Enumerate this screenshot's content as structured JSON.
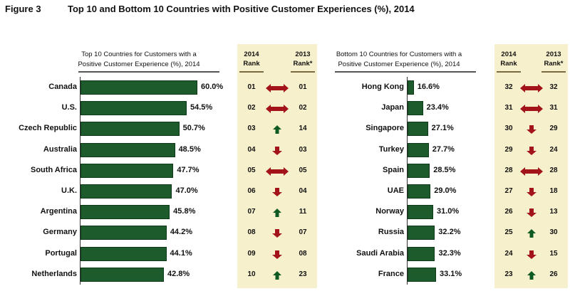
{
  "figure_label": "Figure 3",
  "title": "Top 10 and Bottom 10 Countries with Positive Customer Experiences (%), 2014",
  "colors": {
    "bar": "#1d5a2c",
    "up": "#0e5a22",
    "down": "#a3141a",
    "panel": "#f7f0cc"
  },
  "chart_data": [
    {
      "type": "bar",
      "orientation": "horizontal",
      "title_lines": [
        "Top 10 Countries for Customers with a",
        "Positive Customer Experience (%), 2014"
      ],
      "rank_headers": {
        "y2014": [
          "2014",
          "Rank"
        ],
        "y2013": [
          "2013",
          "Rank*"
        ]
      },
      "categories": [
        "Canada",
        "U.S.",
        "Czech Republic",
        "Australia",
        "South Africa",
        "U.K.",
        "Argentina",
        "Germany",
        "Portugal",
        "Netherlands"
      ],
      "values": [
        60.0,
        54.5,
        50.7,
        48.5,
        47.7,
        47.0,
        45.8,
        44.2,
        44.1,
        42.8
      ],
      "value_labels": [
        "60.0%",
        "54.5%",
        "50.7%",
        "48.5%",
        "47.7%",
        "47.0%",
        "45.8%",
        "44.2%",
        "44.1%",
        "42.8%"
      ],
      "rank_2014": [
        "01",
        "02",
        "03",
        "04",
        "05",
        "06",
        "07",
        "08",
        "09",
        "10"
      ],
      "rank_2013": [
        "01",
        "02",
        "14",
        "03",
        "05",
        "04",
        "11",
        "07",
        "08",
        "23"
      ],
      "trend": [
        "same",
        "same",
        "up",
        "down",
        "same",
        "down",
        "up",
        "down",
        "down",
        "up"
      ],
      "xlim": [
        0,
        60
      ]
    },
    {
      "type": "bar",
      "orientation": "horizontal",
      "title_lines": [
        "Bottom 10 Countries for Customers with a",
        "Positive Customer Experience (%), 2014"
      ],
      "rank_headers": {
        "y2014": [
          "2014",
          "Rank"
        ],
        "y2013": [
          "2013",
          "Rank*"
        ]
      },
      "categories": [
        "Hong Kong",
        "Japan",
        "Singapore",
        "Turkey",
        "Spain",
        "UAE",
        "Norway",
        "Russia",
        "Saudi Arabia",
        "France"
      ],
      "values": [
        16.6,
        23.4,
        27.1,
        27.7,
        28.5,
        29.0,
        31.0,
        32.2,
        32.3,
        33.1
      ],
      "value_labels": [
        "16.6%",
        "23.4%",
        "27.1%",
        "27.7%",
        "28.5%",
        "29.0%",
        "31.0%",
        "32.2%",
        "32.3%",
        "33.1%"
      ],
      "rank_2014": [
        "32",
        "31",
        "30",
        "29",
        "28",
        "27",
        "26",
        "25",
        "24",
        "23"
      ],
      "rank_2013": [
        "32",
        "31",
        "29",
        "24",
        "28",
        "18",
        "13",
        "30",
        "15",
        "26"
      ],
      "trend": [
        "same",
        "same",
        "down",
        "down",
        "same",
        "down",
        "down",
        "up",
        "down",
        "up"
      ],
      "xlim": [
        12,
        33.1
      ]
    }
  ]
}
